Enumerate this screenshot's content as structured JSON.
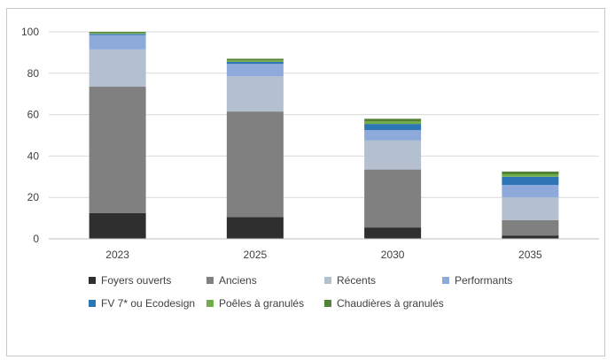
{
  "chart_data": {
    "type": "bar",
    "stacked": true,
    "title": "",
    "xlabel": "",
    "ylabel": "",
    "ylim": [
      0,
      100
    ],
    "yticks": [
      0,
      20,
      40,
      60,
      80,
      100
    ],
    "grid": true,
    "legend_position": "bottom",
    "categories": [
      "2023",
      "2025",
      "2030",
      "2035"
    ],
    "series": [
      {
        "name": "Foyers ouverts",
        "color": "#2f2f2f",
        "values": [
          12.5,
          10.5,
          5.5,
          1.5
        ]
      },
      {
        "name": "Anciens",
        "color": "#808080",
        "values": [
          61,
          51,
          28,
          7.5
        ]
      },
      {
        "name": "Récents",
        "color": "#b4bfcf",
        "values": [
          18,
          17,
          14,
          11
        ]
      },
      {
        "name": "Performants",
        "color": "#8eaadb",
        "values": [
          7,
          6,
          5,
          6
        ]
      },
      {
        "name": "FV 7* ou Ecodesign",
        "color": "#2e75b6",
        "values": [
          0.5,
          1,
          3,
          4
        ]
      },
      {
        "name": "Poêles à granulés",
        "color": "#70ad47",
        "values": [
          0.5,
          0.7,
          1.2,
          1.2
        ]
      },
      {
        "name": "Chaudières à granulés",
        "color": "#548235",
        "values": [
          0.5,
          0.8,
          1.3,
          1.3
        ]
      }
    ]
  }
}
